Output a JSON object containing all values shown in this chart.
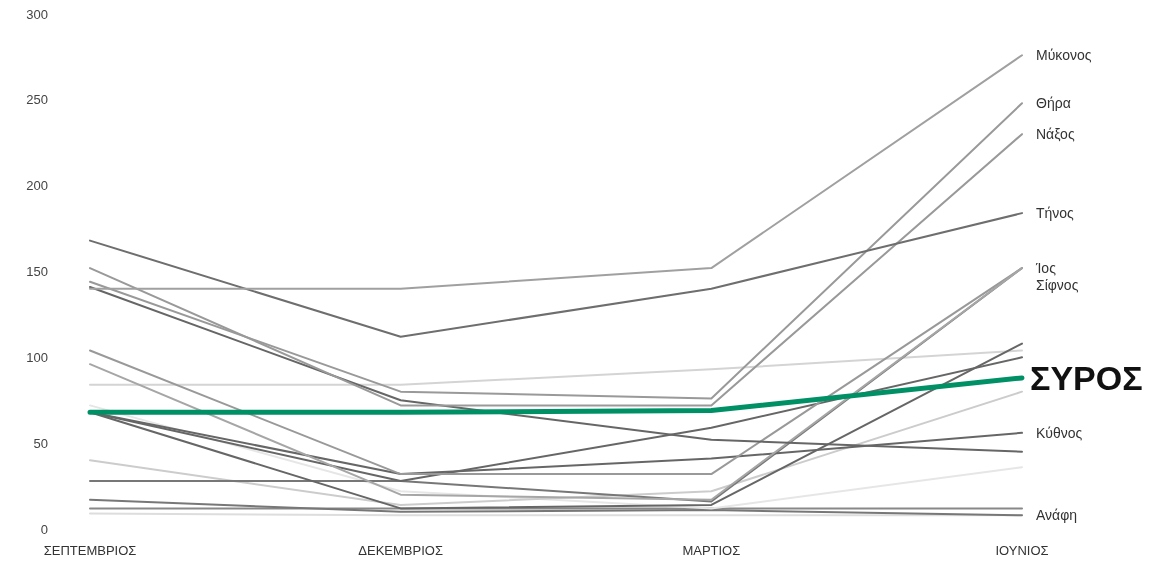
{
  "chart_data": {
    "type": "line",
    "categories": [
      "ΣΕΠΤΕΜΒΡΙΟΣ",
      "ΔΕΚΕΜΒΡΙΟΣ",
      "ΜΑΡΤΙΟΣ",
      "ΙΟΥΝΙΟΣ"
    ],
    "ylim": [
      0,
      300
    ],
    "yticks": [
      0,
      50,
      100,
      150,
      200,
      250,
      300
    ],
    "grid": false,
    "marker": "none",
    "line_style": "solid",
    "series": [
      {
        "color": "#dddddd",
        "values": [
          9,
          8,
          8,
          8
        ]
      },
      {
        "color": "#888888",
        "values": [
          12,
          12,
          12,
          12
        ]
      },
      {
        "name": "Ανάφη",
        "color": "#777777",
        "values": [
          17,
          10,
          11,
          8
        ]
      },
      {
        "color": "#e6e6e6",
        "values": [
          72,
          22,
          12,
          36
        ]
      },
      {
        "color": "#cccccc",
        "values": [
          40,
          14,
          22,
          80
        ]
      },
      {
        "color": "#d4d4d4",
        "values": [
          84,
          84,
          93,
          104
        ]
      },
      {
        "color": "#777777",
        "values": [
          28,
          28,
          16,
          152
        ]
      },
      {
        "color": "#666666",
        "values": [
          68,
          12,
          14,
          108
        ]
      },
      {
        "color": "#666666",
        "values": [
          68,
          28,
          59,
          100
        ]
      },
      {
        "name": "Κύθνος",
        "color": "#666666",
        "values": [
          68,
          32,
          41,
          56
        ]
      },
      {
        "name": "Ίος",
        "color": "#999999",
        "values": [
          104,
          32,
          32,
          152
        ]
      },
      {
        "name": "Σίφνος",
        "color": "#a6a6a6",
        "values": [
          96,
          20,
          17,
          152
        ]
      },
      {
        "color": "#666666",
        "values": [
          141,
          75,
          52,
          45
        ]
      },
      {
        "name": "Νάξος",
        "color": "#999999",
        "values": [
          152,
          72,
          72,
          230
        ]
      },
      {
        "name": "Θήρα",
        "color": "#999999",
        "values": [
          144,
          80,
          76,
          248
        ]
      },
      {
        "name": "Τήνος",
        "color": "#6e6e6e",
        "values": [
          168,
          112,
          140,
          184
        ]
      },
      {
        "name": "Μύκονος",
        "color": "#a0a0a0",
        "values": [
          140,
          140,
          152,
          276
        ]
      },
      {
        "name": "ΣΥΡΟΣ",
        "color": "#009066",
        "values": [
          68,
          68,
          69,
          88
        ]
      }
    ]
  }
}
